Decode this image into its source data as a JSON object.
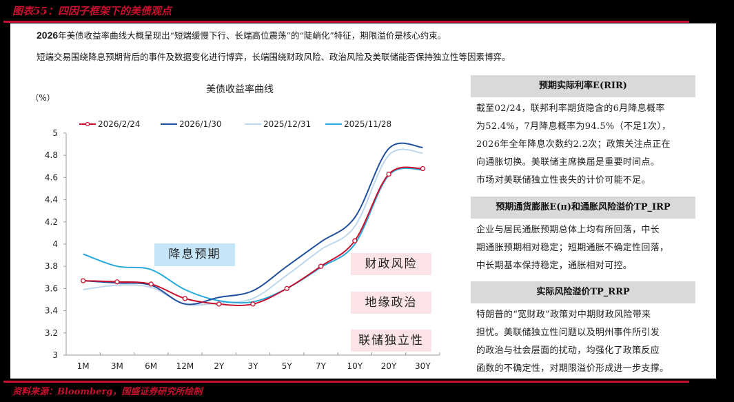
{
  "figure": {
    "title": "图表55：四因子框架下的美债观点",
    "source": "资料来源：Bloomberg，国盛证券研究所绘制"
  },
  "intro": {
    "line1_bold": "2026",
    "line1_rest": "年美债收益率曲线大概呈现出“短端缓慢下行、长端高位震荡”的“陡峭化”特征，期限溢价是核心约束。",
    "line2": "短端交易围绕降息预期背后的事件及数据变化进行博弈，长端围绕财政风险、政治风险及美联储能否保持独立性等因素博弈。"
  },
  "chart_data": {
    "type": "line",
    "title": "美债收益率曲线",
    "xlabel": "",
    "ylabel": "（%）",
    "ylim": [
      3,
      5
    ],
    "yticks": [
      "3",
      "3.2",
      "3.4",
      "3.6",
      "3.8",
      "4",
      "4.2",
      "4.4",
      "4.6",
      "4.8",
      "5"
    ],
    "grid": false,
    "legend_position": "top",
    "categories": [
      "1M",
      "3M",
      "6M",
      "12M",
      "2Y",
      "3Y",
      "5Y",
      "7Y",
      "10Y",
      "20Y",
      "30Y"
    ],
    "series": [
      {
        "name": "2026/2/24",
        "color": "#c8102e",
        "markers": true,
        "values": [
          3.67,
          3.66,
          3.64,
          3.51,
          3.46,
          3.46,
          3.6,
          3.8,
          4.03,
          4.63,
          4.68
        ]
      },
      {
        "name": "2026/1/30",
        "color": "#1f4e9c",
        "markers": false,
        "values": [
          3.67,
          3.65,
          3.63,
          3.46,
          3.52,
          3.58,
          3.8,
          4.02,
          4.24,
          4.86,
          4.87
        ]
      },
      {
        "name": "2025/12/31",
        "color": "#bcd7ee",
        "markers": false,
        "values": [
          3.59,
          3.63,
          3.61,
          3.46,
          3.47,
          3.51,
          3.72,
          3.95,
          4.16,
          4.8,
          4.82
        ]
      },
      {
        "name": "2025/11/28",
        "color": "#27a9dc",
        "markers": false,
        "values": [
          3.91,
          3.8,
          3.77,
          3.59,
          3.49,
          3.48,
          3.6,
          3.79,
          4.0,
          4.62,
          4.67
        ]
      }
    ],
    "annotations": [
      "降息预期",
      "财政风险",
      "地缘政治",
      "联储独立性"
    ]
  },
  "tags": {
    "rate_cut": "降息预期",
    "fiscal": "财政风险",
    "geopolitics": "地缘政治",
    "fed_independence": "联储独立性"
  },
  "sidebar": {
    "sections": [
      {
        "header": "预期实际利率E(RIR)",
        "lines": [
          "截至02/24，联邦利率期货隐含的6月降息概率",
          "为52.4%，7月降息概率为94.5%（不足1次），",
          "2026年全年降息次数约2.2次；政策关注点正在",
          "向通胀切换。美联储主席换届是重要时间点。",
          "市场对美联储独立性丧失的计价可能不足。"
        ]
      },
      {
        "header": "预期通货膨胀E(π)和通胀风险溢价TP_IRP",
        "lines": [
          "企业与居民通胀预期总体上均有所回落，中长",
          "期通胀预期相对稳定；短期通胀不确定性回落，",
          "中长期基本保持稳定，通胀相对可控。"
        ]
      },
      {
        "header": "实际风险溢价TP_RRP",
        "lines": [
          "特朗普的“宽财政”政策对中期财政风险带来",
          "担忧。美联储独立性问题以及明州事件所引发",
          "的政治与社会层面的扰动，均强化了政策反应",
          "函数的不确定性，对期限溢价形成进一步支撑。"
        ]
      }
    ]
  }
}
